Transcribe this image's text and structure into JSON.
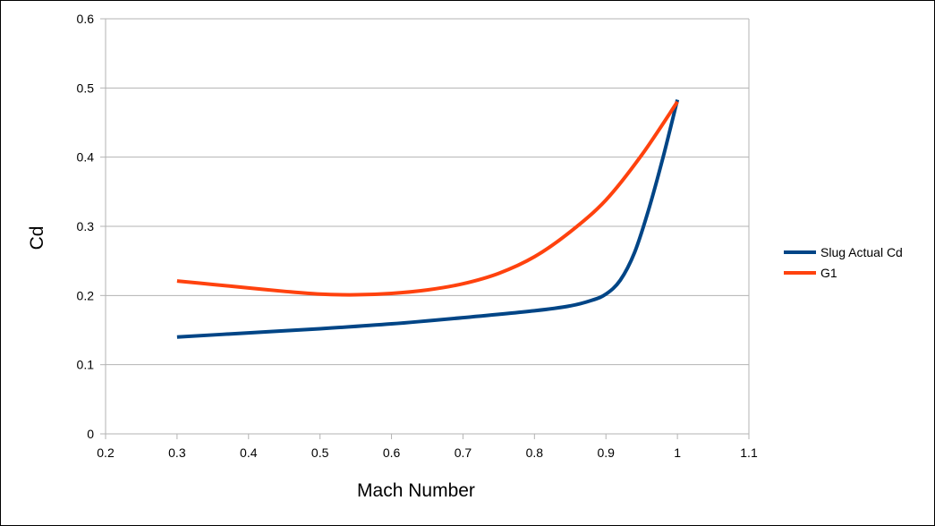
{
  "chart_data": {
    "type": "line",
    "xlabel": "Mach Number",
    "ylabel": "Cd",
    "xlim": [
      0.2,
      1.1
    ],
    "ylim": [
      0,
      0.6
    ],
    "xticks": [
      "0.2",
      "0.3",
      "0.4",
      "0.5",
      "0.6",
      "0.7",
      "0.8",
      "0.9",
      "1",
      "1.1"
    ],
    "yticks": [
      "0",
      "0.1",
      "0.2",
      "0.3",
      "0.4",
      "0.5",
      "0.6"
    ],
    "grid": "horizontal",
    "legend_position": "right",
    "series": [
      {
        "name": "Slug Actual Cd",
        "color": "#004586",
        "x": [
          0.3,
          0.4,
          0.5,
          0.6,
          0.7,
          0.8,
          0.85,
          0.88,
          0.9,
          0.92,
          0.94,
          0.96,
          0.98,
          1.0
        ],
        "y": [
          0.14,
          0.146,
          0.152,
          0.159,
          0.168,
          0.178,
          0.185,
          0.193,
          0.202,
          0.222,
          0.262,
          0.325,
          0.4,
          0.483
        ]
      },
      {
        "name": "G1",
        "color": "#ff420e",
        "x": [
          0.3,
          0.35,
          0.4,
          0.45,
          0.5,
          0.55,
          0.6,
          0.65,
          0.7,
          0.75,
          0.8,
          0.85,
          0.9,
          0.95,
          1.0
        ],
        "y": [
          0.221,
          0.216,
          0.211,
          0.206,
          0.202,
          0.201,
          0.203,
          0.208,
          0.217,
          0.232,
          0.256,
          0.292,
          0.338,
          0.403,
          0.48
        ]
      }
    ]
  }
}
